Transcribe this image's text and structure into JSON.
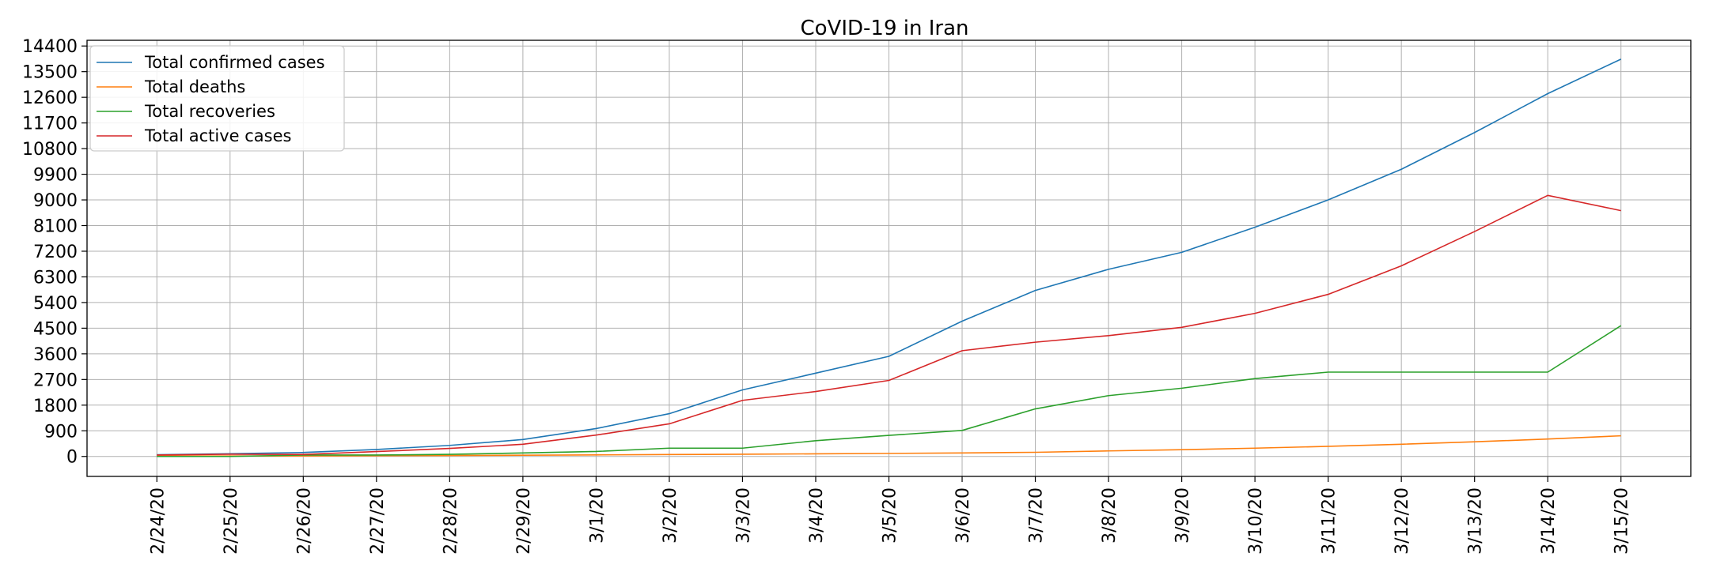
{
  "chart_data": {
    "type": "line",
    "title": "CoVID-19 in Iran",
    "xlabel": "",
    "ylabel": "",
    "categories": [
      "2/24/20",
      "2/25/20",
      "2/26/20",
      "2/27/20",
      "2/28/20",
      "2/29/20",
      "3/1/20",
      "3/2/20",
      "3/3/20",
      "3/4/20",
      "3/5/20",
      "3/6/20",
      "3/7/20",
      "3/8/20",
      "3/9/20",
      "3/10/20",
      "3/11/20",
      "3/12/20",
      "3/13/20",
      "3/14/20",
      "3/15/20"
    ],
    "yticks": [
      0,
      900,
      1800,
      2700,
      3600,
      4500,
      5400,
      6300,
      7200,
      8100,
      9000,
      9900,
      10800,
      11700,
      12600,
      13500,
      14400
    ],
    "ylim": [
      -700,
      14600
    ],
    "grid": true,
    "legend_position": "top-left",
    "series": [
      {
        "name": "Total confirmed cases",
        "color": "#1f77b4",
        "values": [
          61,
          95,
          139,
          245,
          388,
          593,
          978,
          1501,
          2336,
          2922,
          3513,
          4747,
          5823,
          6566,
          7161,
          8042,
          9000,
          10075,
          11364,
          12729,
          13938
        ]
      },
      {
        "name": "Total deaths",
        "color": "#ff7f0e",
        "values": [
          12,
          16,
          19,
          26,
          34,
          43,
          54,
          66,
          77,
          92,
          107,
          124,
          145,
          194,
          237,
          291,
          354,
          429,
          514,
          611,
          724
        ]
      },
      {
        "name": "Total recoveries",
        "color": "#2ca02c",
        "values": [
          0,
          0,
          49,
          49,
          73,
          123,
          175,
          291,
          291,
          552,
          739,
          913,
          1669,
          2134,
          2394,
          2731,
          2959,
          2959,
          2959,
          2959,
          4590
        ]
      },
      {
        "name": "Total active cases",
        "color": "#d62728",
        "values": [
          49,
          79,
          71,
          170,
          281,
          427,
          749,
          1144,
          1968,
          2278,
          2667,
          3710,
          4009,
          4238,
          4530,
          5020,
          5687,
          6687,
          7891,
          9159,
          8624
        ]
      }
    ]
  }
}
